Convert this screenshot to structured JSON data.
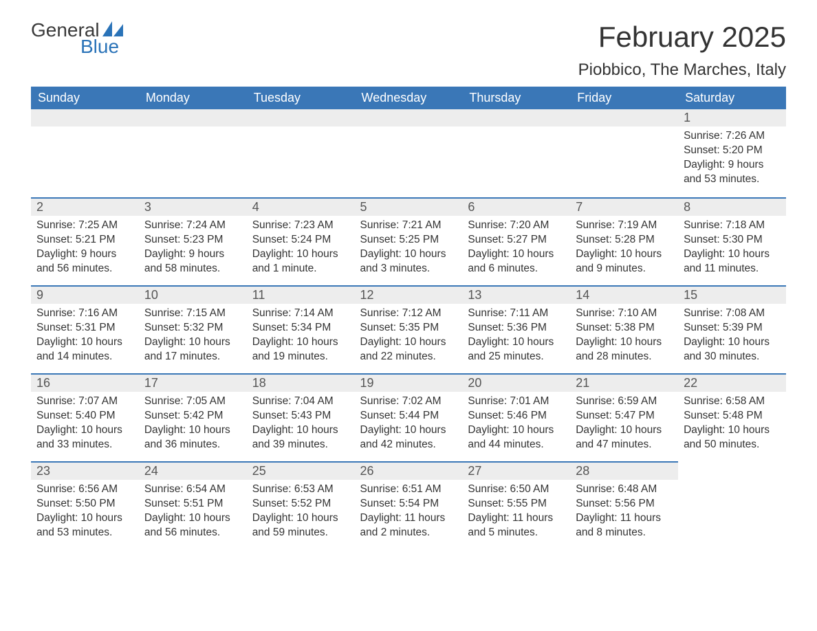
{
  "logo": {
    "text_top": "General",
    "text_bottom": "Blue",
    "color_gray": "#3a3a3a",
    "color_blue": "#2a73b8"
  },
  "header": {
    "month_title": "February 2025",
    "location": "Piobbico, The Marches, Italy"
  },
  "theme": {
    "header_bg": "#3a77b7",
    "header_text": "#ffffff",
    "daynum_bg": "#ededed",
    "row_border": "#3a77b7",
    "body_text": "#333333",
    "page_bg": "#ffffff"
  },
  "day_headers": [
    "Sunday",
    "Monday",
    "Tuesday",
    "Wednesday",
    "Thursday",
    "Friday",
    "Saturday"
  ],
  "weeks": [
    [
      null,
      null,
      null,
      null,
      null,
      null,
      {
        "n": "1",
        "sunrise": "Sunrise: 7:26 AM",
        "sunset": "Sunset: 5:20 PM",
        "daylight": "Daylight: 9 hours and 53 minutes."
      }
    ],
    [
      {
        "n": "2",
        "sunrise": "Sunrise: 7:25 AM",
        "sunset": "Sunset: 5:21 PM",
        "daylight": "Daylight: 9 hours and 56 minutes."
      },
      {
        "n": "3",
        "sunrise": "Sunrise: 7:24 AM",
        "sunset": "Sunset: 5:23 PM",
        "daylight": "Daylight: 9 hours and 58 minutes."
      },
      {
        "n": "4",
        "sunrise": "Sunrise: 7:23 AM",
        "sunset": "Sunset: 5:24 PM",
        "daylight": "Daylight: 10 hours and 1 minute."
      },
      {
        "n": "5",
        "sunrise": "Sunrise: 7:21 AM",
        "sunset": "Sunset: 5:25 PM",
        "daylight": "Daylight: 10 hours and 3 minutes."
      },
      {
        "n": "6",
        "sunrise": "Sunrise: 7:20 AM",
        "sunset": "Sunset: 5:27 PM",
        "daylight": "Daylight: 10 hours and 6 minutes."
      },
      {
        "n": "7",
        "sunrise": "Sunrise: 7:19 AM",
        "sunset": "Sunset: 5:28 PM",
        "daylight": "Daylight: 10 hours and 9 minutes."
      },
      {
        "n": "8",
        "sunrise": "Sunrise: 7:18 AM",
        "sunset": "Sunset: 5:30 PM",
        "daylight": "Daylight: 10 hours and 11 minutes."
      }
    ],
    [
      {
        "n": "9",
        "sunrise": "Sunrise: 7:16 AM",
        "sunset": "Sunset: 5:31 PM",
        "daylight": "Daylight: 10 hours and 14 minutes."
      },
      {
        "n": "10",
        "sunrise": "Sunrise: 7:15 AM",
        "sunset": "Sunset: 5:32 PM",
        "daylight": "Daylight: 10 hours and 17 minutes."
      },
      {
        "n": "11",
        "sunrise": "Sunrise: 7:14 AM",
        "sunset": "Sunset: 5:34 PM",
        "daylight": "Daylight: 10 hours and 19 minutes."
      },
      {
        "n": "12",
        "sunrise": "Sunrise: 7:12 AM",
        "sunset": "Sunset: 5:35 PM",
        "daylight": "Daylight: 10 hours and 22 minutes."
      },
      {
        "n": "13",
        "sunrise": "Sunrise: 7:11 AM",
        "sunset": "Sunset: 5:36 PM",
        "daylight": "Daylight: 10 hours and 25 minutes."
      },
      {
        "n": "14",
        "sunrise": "Sunrise: 7:10 AM",
        "sunset": "Sunset: 5:38 PM",
        "daylight": "Daylight: 10 hours and 28 minutes."
      },
      {
        "n": "15",
        "sunrise": "Sunrise: 7:08 AM",
        "sunset": "Sunset: 5:39 PM",
        "daylight": "Daylight: 10 hours and 30 minutes."
      }
    ],
    [
      {
        "n": "16",
        "sunrise": "Sunrise: 7:07 AM",
        "sunset": "Sunset: 5:40 PM",
        "daylight": "Daylight: 10 hours and 33 minutes."
      },
      {
        "n": "17",
        "sunrise": "Sunrise: 7:05 AM",
        "sunset": "Sunset: 5:42 PM",
        "daylight": "Daylight: 10 hours and 36 minutes."
      },
      {
        "n": "18",
        "sunrise": "Sunrise: 7:04 AM",
        "sunset": "Sunset: 5:43 PM",
        "daylight": "Daylight: 10 hours and 39 minutes."
      },
      {
        "n": "19",
        "sunrise": "Sunrise: 7:02 AM",
        "sunset": "Sunset: 5:44 PM",
        "daylight": "Daylight: 10 hours and 42 minutes."
      },
      {
        "n": "20",
        "sunrise": "Sunrise: 7:01 AM",
        "sunset": "Sunset: 5:46 PM",
        "daylight": "Daylight: 10 hours and 44 minutes."
      },
      {
        "n": "21",
        "sunrise": "Sunrise: 6:59 AM",
        "sunset": "Sunset: 5:47 PM",
        "daylight": "Daylight: 10 hours and 47 minutes."
      },
      {
        "n": "22",
        "sunrise": "Sunrise: 6:58 AM",
        "sunset": "Sunset: 5:48 PM",
        "daylight": "Daylight: 10 hours and 50 minutes."
      }
    ],
    [
      {
        "n": "23",
        "sunrise": "Sunrise: 6:56 AM",
        "sunset": "Sunset: 5:50 PM",
        "daylight": "Daylight: 10 hours and 53 minutes."
      },
      {
        "n": "24",
        "sunrise": "Sunrise: 6:54 AM",
        "sunset": "Sunset: 5:51 PM",
        "daylight": "Daylight: 10 hours and 56 minutes."
      },
      {
        "n": "25",
        "sunrise": "Sunrise: 6:53 AM",
        "sunset": "Sunset: 5:52 PM",
        "daylight": "Daylight: 10 hours and 59 minutes."
      },
      {
        "n": "26",
        "sunrise": "Sunrise: 6:51 AM",
        "sunset": "Sunset: 5:54 PM",
        "daylight": "Daylight: 11 hours and 2 minutes."
      },
      {
        "n": "27",
        "sunrise": "Sunrise: 6:50 AM",
        "sunset": "Sunset: 5:55 PM",
        "daylight": "Daylight: 11 hours and 5 minutes."
      },
      {
        "n": "28",
        "sunrise": "Sunrise: 6:48 AM",
        "sunset": "Sunset: 5:56 PM",
        "daylight": "Daylight: 11 hours and 8 minutes."
      },
      null
    ]
  ]
}
